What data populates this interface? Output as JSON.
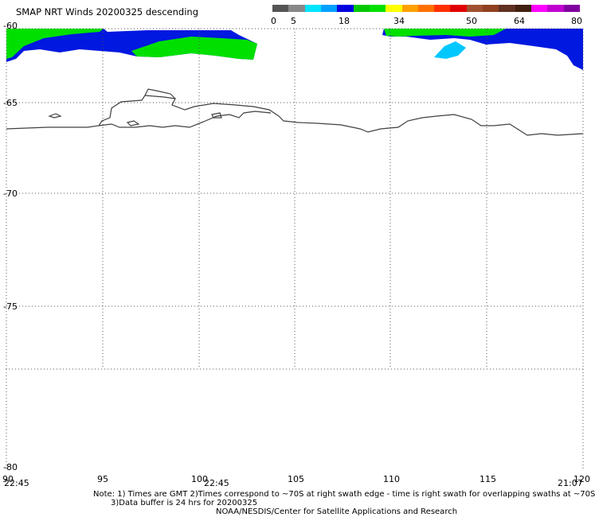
{
  "title": "SMAP NRT Winds  20200325 descending",
  "colorbar": {
    "labels": [
      "0",
      "5",
      "18",
      "34",
      "50",
      "64",
      "80"
    ],
    "segments": [
      "#555555",
      "#888888",
      "#00e5ff",
      "#00a0ff",
      "#0000e0",
      "#00c800",
      "#00e000",
      "#ffff00",
      "#ffa000",
      "#ff7000",
      "#ff3000",
      "#e00000",
      "#a05030",
      "#904020",
      "#603020",
      "#402010",
      "#ff00ff",
      "#c000d0",
      "#8000a0"
    ]
  },
  "lat_labels": [
    "-60",
    "-65",
    "-70",
    "-75",
    "-80"
  ],
  "lon_labels": [
    "90",
    "95",
    "100",
    "105",
    "110",
    "115",
    "120"
  ],
  "time_labels": [
    "22:45",
    "22:45",
    "21:07"
  ],
  "notes": {
    "line1": "Note: 1) Times are GMT 2)Times correspond to ~70S at right swath edge - time is right swath for overlapping swaths at ~70S",
    "line2": "3)Data buffer is 24 hrs for 20200325",
    "line3": "NOAA/NESDIS/Center for Satellite Applications and Research"
  },
  "colors": {
    "green": "#00e000",
    "blue": "#0018e0",
    "cyan": "#00c8ff",
    "coast": "#404040",
    "grid": "#555555"
  }
}
